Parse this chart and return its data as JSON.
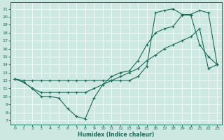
{
  "bg_color": "#cce8e0",
  "line_color": "#1a6b5a",
  "xlabel": "Humidex (Indice chaleur)",
  "xlim": [
    -0.5,
    23.5
  ],
  "ylim": [
    6.5,
    21.8
  ],
  "xticks": [
    0,
    1,
    2,
    3,
    4,
    5,
    6,
    7,
    8,
    9,
    10,
    11,
    12,
    13,
    14,
    15,
    16,
    17,
    18,
    19,
    20,
    21,
    22,
    23
  ],
  "yticks": [
    7,
    8,
    9,
    10,
    11,
    12,
    13,
    14,
    15,
    16,
    17,
    18,
    19,
    20,
    21
  ],
  "line1_x": [
    0,
    1,
    2,
    3,
    4,
    5,
    6,
    7,
    8,
    9,
    10,
    11,
    12,
    13,
    14,
    15,
    16,
    17,
    18,
    19,
    20,
    21,
    22,
    23
  ],
  "line1_y": [
    12.2,
    11.8,
    11.0,
    10.0,
    10.0,
    9.8,
    8.5,
    7.5,
    7.2,
    9.8,
    11.5,
    12.5,
    13.0,
    13.2,
    14.5,
    16.5,
    18.0,
    18.5,
    18.8,
    20.2,
    20.2,
    16.5,
    15.0,
    14.0
  ],
  "line2_x": [
    0,
    1,
    2,
    3,
    4,
    5,
    6,
    7,
    8,
    9,
    10,
    11,
    12,
    13,
    14,
    15,
    16,
    17,
    18,
    19,
    20,
    21,
    22,
    23
  ],
  "line2_y": [
    12.2,
    12.0,
    12.0,
    12.0,
    12.0,
    12.0,
    12.0,
    12.0,
    12.0,
    12.0,
    12.0,
    12.0,
    12.0,
    12.0,
    12.5,
    13.8,
    20.5,
    20.8,
    21.0,
    20.3,
    20.3,
    20.8,
    20.5,
    14.0
  ],
  "line3_x": [
    0,
    1,
    2,
    3,
    4,
    5,
    6,
    7,
    8,
    9,
    10,
    11,
    12,
    13,
    14,
    15,
    16,
    17,
    18,
    19,
    20,
    21,
    22,
    23
  ],
  "line3_y": [
    12.2,
    11.8,
    11.0,
    10.5,
    10.5,
    10.5,
    10.5,
    10.5,
    10.5,
    11.0,
    11.5,
    12.0,
    12.5,
    13.0,
    13.5,
    14.5,
    15.2,
    16.0,
    16.5,
    17.0,
    17.5,
    18.5,
    13.5,
    14.0
  ]
}
